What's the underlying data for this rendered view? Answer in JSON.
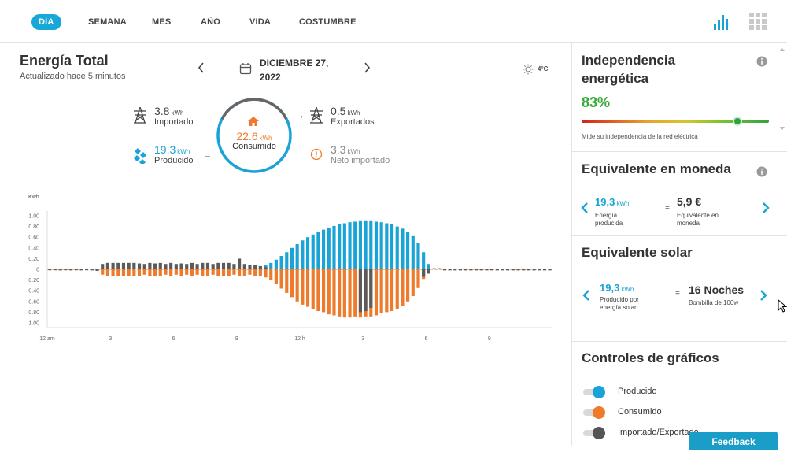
{
  "nav": {
    "tabs": [
      {
        "label": "DÍA",
        "active": true
      },
      {
        "label": "SEMANA",
        "active": false
      },
      {
        "label": "MES",
        "active": false
      },
      {
        "label": "AÑO",
        "active": false
      },
      {
        "label": "VIDA",
        "active": false
      },
      {
        "label": "COSTUMBRE",
        "active": false
      }
    ],
    "icons": [
      "bar-chart-icon",
      "grid-apps-icon"
    ]
  },
  "energy": {
    "title": "Energía Total",
    "updated": "Actualizado hace 5 minutos",
    "date_line1": "DICIEMBRE 27,",
    "date_line2": "2022",
    "temperature": "4°C",
    "imported": {
      "value": "3.8",
      "unit": "kWh",
      "label": "Importado"
    },
    "produced": {
      "value": "19.3",
      "unit": "kWh",
      "label": "Producido"
    },
    "consumed": {
      "value": "22.6",
      "unit": "kWh",
      "label": "Consumido"
    },
    "exported": {
      "value": "0.5",
      "unit": "kWh",
      "label": "Exportados"
    },
    "net_imported": {
      "value": "3.3",
      "unit": "kWh",
      "label": "Neto importado"
    }
  },
  "chart_data": {
    "type": "bar",
    "ylabel": "Kwh",
    "ylim": [
      -1,
      1
    ],
    "yticks": [
      "1.00",
      "0.80",
      "0.60",
      "0.40",
      "0.20",
      "0",
      "0.20",
      "0.40",
      "0.60",
      "0.80",
      "1.00"
    ],
    "xtick_labels": [
      "12 am",
      "3",
      "6",
      "9",
      "12 h",
      "3",
      "6",
      "9"
    ],
    "intervals_per_hour": 4,
    "series": [
      {
        "name": "Producido",
        "color": "#1aa3d6",
        "values": [
          0,
          0,
          0,
          0,
          0,
          0,
          0,
          0,
          0,
          0,
          0,
          0,
          0,
          0,
          0,
          0,
          0,
          0,
          0,
          0,
          0,
          0,
          0,
          0,
          0,
          0,
          0,
          0,
          0,
          0,
          0,
          0,
          0,
          0,
          0,
          0,
          0,
          0,
          0,
          0.02,
          0.05,
          0.08,
          0.12,
          0.18,
          0.25,
          0.32,
          0.4,
          0.47,
          0.54,
          0.6,
          0.65,
          0.7,
          0.74,
          0.78,
          0.81,
          0.84,
          0.86,
          0.88,
          0.89,
          0.9,
          0.9,
          0.9,
          0.89,
          0.88,
          0.86,
          0.84,
          0.8,
          0.76,
          0.7,
          0.62,
          0.5,
          0.32,
          0.1,
          0,
          0,
          0,
          0,
          0,
          0,
          0,
          0,
          0,
          0,
          0,
          0,
          0,
          0,
          0,
          0,
          0,
          0,
          0,
          0,
          0,
          0,
          0
        ]
      },
      {
        "name": "Consumido",
        "color": "#ee7a2b",
        "values": [
          0,
          0,
          0,
          0,
          0,
          0,
          0,
          0,
          0,
          0,
          -0.1,
          -0.12,
          -0.12,
          -0.12,
          -0.12,
          -0.12,
          -0.12,
          -0.12,
          -0.1,
          -0.12,
          -0.12,
          -0.12,
          -0.1,
          -0.12,
          -0.1,
          -0.12,
          -0.1,
          -0.12,
          -0.1,
          -0.12,
          -0.12,
          -0.1,
          -0.12,
          -0.12,
          -0.12,
          -0.1,
          -0.12,
          -0.12,
          -0.1,
          -0.12,
          -0.12,
          -0.15,
          -0.2,
          -0.28,
          -0.36,
          -0.44,
          -0.52,
          -0.6,
          -0.66,
          -0.7,
          -0.74,
          -0.78,
          -0.8,
          -0.84,
          -0.86,
          -0.88,
          -0.9,
          -0.9,
          -0.88,
          -0.9,
          -0.88,
          -0.88,
          -0.86,
          -0.82,
          -0.8,
          -0.78,
          -0.74,
          -0.68,
          -0.6,
          -0.5,
          -0.35,
          -0.18,
          -0.06,
          0,
          0,
          0,
          0,
          0,
          0,
          0,
          0,
          0,
          0,
          0,
          0,
          0,
          0,
          0,
          0,
          0,
          0,
          0,
          0,
          0,
          0,
          0
        ]
      },
      {
        "name": "Importado/Exportado",
        "color": "#5b5b5b",
        "values": [
          -0.01,
          -0.01,
          -0.02,
          -0.01,
          -0.02,
          -0.01,
          -0.02,
          -0.01,
          -0.02,
          -0.03,
          0.1,
          0.12,
          0.12,
          0.12,
          0.12,
          0.12,
          0.12,
          0.11,
          0.1,
          0.12,
          0.11,
          0.12,
          0.1,
          0.12,
          0.1,
          0.11,
          0.1,
          0.12,
          0.1,
          0.12,
          0.12,
          0.1,
          0.12,
          0.12,
          0.12,
          0.1,
          0.2,
          0.1,
          0.08,
          0.08,
          0.06,
          0.04,
          0,
          0,
          0,
          0,
          0,
          0,
          0,
          0,
          0,
          0,
          0,
          0,
          0,
          0,
          0,
          0,
          0,
          -0.8,
          -0.78,
          -0.72,
          0,
          0,
          0,
          0,
          0,
          0,
          0,
          0,
          0,
          -0.14,
          -0.08,
          0.02,
          0.02,
          -0.02,
          -0.02,
          -0.02,
          -0.02,
          -0.02,
          -0.02,
          -0.02,
          -0.02,
          -0.02,
          -0.02,
          -0.02,
          -0.02,
          -0.02,
          -0.02,
          -0.02,
          -0.02,
          -0.02,
          -0.02,
          -0.02,
          -0.02,
          -0.02
        ]
      }
    ]
  },
  "independence": {
    "title_line1": "Independencia",
    "title_line2": "energética",
    "percent": "83%",
    "level": 0.83,
    "note": "Mide su independencia de la red eléctrica"
  },
  "money": {
    "title": "Equivalente en moneda",
    "value": "19,3",
    "unit": "kWh",
    "label_line1": "Energía",
    "label_line2": "producida",
    "equals": "=",
    "result": "5,9 €",
    "result_label_line1": "Equivalente en",
    "result_label_line2": "moneda"
  },
  "solar": {
    "title": "Equivalente solar",
    "value": "19,3",
    "unit": "kWh",
    "label_line1": "Producido por",
    "label_line2": "energía solar",
    "equals": "=",
    "result": "16 Noches",
    "result_label": "Bombilla de 100w"
  },
  "controls": {
    "title": "Controles de gráficos",
    "items": [
      {
        "label": "Producido",
        "color": "#1aa3d6"
      },
      {
        "label": "Consumido",
        "color": "#ee7a2b"
      },
      {
        "label": "Importado/Exportado",
        "color": "#555555"
      }
    ]
  },
  "feedback_label": "Feedback"
}
